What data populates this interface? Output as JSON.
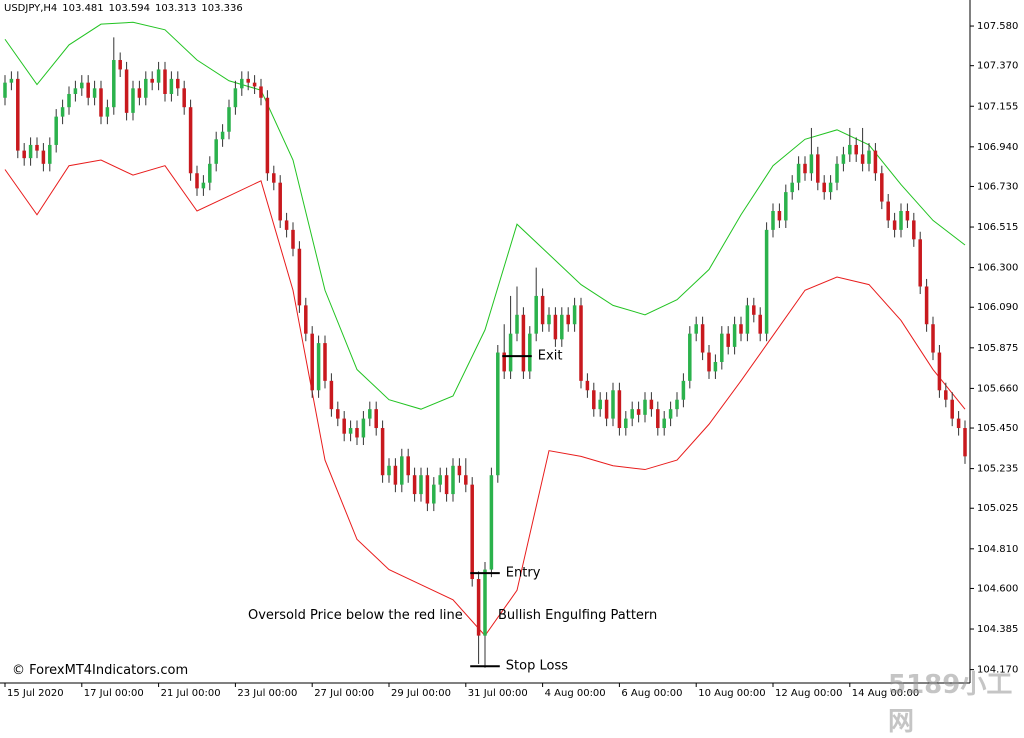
{
  "chart_data": {
    "type": "candlestick",
    "symbol": "USDJPY,H4",
    "header_quotes": [
      103.481,
      103.594,
      103.313,
      103.336
    ],
    "watermark": "© ForexMT4Indicators.com",
    "site_mark": "5189小工网",
    "up_color": "#2bb24c",
    "down_color": "#c8191e",
    "xlim": [
      -0.78,
      150.78
    ],
    "ylim": [
      104.099,
      107.718
    ],
    "yticks": [
      {
        "value": 107.58,
        "label": "107.580"
      },
      {
        "value": 107.37,
        "label": "107.370"
      },
      107.155,
      {
        "value": 106.94,
        "label": "106.940"
      },
      {
        "value": 106.73,
        "label": "106.730"
      },
      106.515,
      {
        "value": 106.3,
        "label": "106.300"
      },
      {
        "value": 106.09,
        "label": "106.090"
      },
      105.875,
      {
        "value": 105.66,
        "label": "105.660"
      },
      {
        "value": 105.45,
        "label": "105.450"
      },
      105.235,
      105.025,
      {
        "value": 104.81,
        "label": "104.810"
      },
      {
        "value": 104.6,
        "label": "104.600"
      },
      104.385,
      {
        "value": 104.17,
        "label": "104.170"
      }
    ],
    "xticks": [
      {
        "value": 0,
        "label": "15 Jul 2020"
      },
      {
        "value": 12,
        "label": "17 Jul 00:00"
      },
      {
        "value": 24,
        "label": "21 Jul 00:00"
      },
      {
        "value": 36,
        "label": "23 Jul 00:00"
      },
      {
        "value": 48,
        "label": "27 Jul 00:00"
      },
      {
        "value": 60,
        "label": "29 Jul 00:00"
      },
      {
        "value": 72,
        "label": "31 Jul 00:00"
      },
      {
        "value": 84,
        "label": "4 Aug 00:00"
      },
      {
        "value": 96,
        "label": "6 Aug 00:00"
      },
      {
        "value": 108,
        "label": "10 Aug 00:00"
      },
      {
        "value": 120,
        "label": "12 Aug 00:00"
      },
      {
        "value": 132,
        "label": "14 Aug 00:00"
      }
    ],
    "open": [
      107.2,
      107.28,
      107.3,
      106.92,
      106.88,
      106.95,
      106.92,
      106.85,
      106.95,
      107.1,
      107.15,
      107.22,
      107.25,
      107.28,
      107.2,
      107.25,
      107.1,
      107.15,
      107.4,
      107.35,
      107.12,
      107.25,
      107.2,
      107.3,
      107.28,
      107.35,
      107.22,
      107.3,
      107.25,
      107.15,
      106.8,
      106.72,
      106.75,
      106.85,
      106.98,
      107.02,
      107.15,
      107.25,
      107.3,
      107.28,
      107.26,
      107.2,
      106.8,
      106.75,
      106.55,
      106.5,
      106.4,
      106.1,
      105.95,
      105.65,
      105.9,
      105.7,
      105.55,
      105.5,
      105.42,
      105.45,
      105.4,
      105.5,
      105.55,
      105.45,
      105.2,
      105.25,
      105.15,
      105.3,
      105.2,
      105.1,
      105.2,
      105.05,
      105.15,
      105.2,
      105.1,
      105.25,
      105.2,
      105.15,
      104.65,
      104.35,
      104.7,
      105.2,
      105.85,
      105.75,
      105.95,
      106.05,
      105.75,
      105.95,
      106.15,
      106.0,
      106.05,
      105.92,
      106.05,
      106.0,
      106.1,
      105.7,
      105.65,
      105.55,
      105.6,
      105.5,
      105.65,
      105.45,
      105.5,
      105.55,
      105.52,
      105.6,
      105.55,
      105.45,
      105.5,
      105.55,
      105.6,
      105.7,
      105.95,
      106.0,
      105.85,
      105.75,
      105.8,
      105.95,
      105.88,
      106.0,
      105.95,
      106.1,
      106.05,
      105.95,
      106.5,
      106.6,
      106.55,
      106.7,
      106.75,
      106.85,
      106.8,
      106.9,
      106.75,
      106.7,
      106.75,
      106.85,
      106.9,
      106.95,
      106.9,
      106.85,
      106.92,
      106.8,
      106.65,
      106.55,
      106.5,
      106.6,
      106.55,
      106.45,
      106.2,
      106.0,
      105.85,
      105.65,
      105.6,
      105.5,
      105.45
    ],
    "high": [
      107.32,
      107.34,
      107.34,
      106.96,
      106.99,
      106.99,
      106.96,
      106.99,
      107.14,
      107.19,
      107.26,
      107.29,
      107.32,
      107.32,
      107.29,
      107.29,
      107.19,
      107.52,
      107.44,
      107.39,
      107.29,
      107.29,
      107.34,
      107.34,
      107.39,
      107.39,
      107.34,
      107.34,
      107.29,
      107.19,
      106.84,
      106.79,
      106.89,
      107.02,
      107.06,
      107.19,
      107.29,
      107.34,
      107.34,
      107.32,
      107.3,
      107.24,
      106.84,
      106.79,
      106.59,
      106.54,
      106.44,
      106.14,
      105.99,
      105.94,
      105.94,
      105.74,
      105.59,
      105.54,
      105.49,
      105.49,
      105.54,
      105.59,
      105.59,
      105.49,
      105.29,
      105.29,
      105.34,
      105.34,
      105.24,
      105.24,
      105.24,
      105.19,
      105.24,
      105.24,
      105.29,
      105.29,
      105.29,
      105.19,
      104.69,
      104.74,
      105.24,
      105.89,
      106.0,
      106.15,
      106.2,
      106.09,
      105.99,
      106.3,
      106.19,
      106.09,
      106.09,
      106.09,
      106.09,
      106.14,
      106.14,
      105.74,
      105.69,
      105.64,
      105.64,
      105.69,
      105.69,
      105.54,
      105.59,
      105.59,
      105.64,
      105.64,
      105.59,
      105.54,
      105.59,
      105.64,
      105.74,
      105.99,
      106.04,
      106.04,
      105.89,
      105.84,
      105.99,
      105.99,
      106.04,
      106.04,
      106.14,
      106.14,
      106.09,
      106.54,
      106.64,
      106.64,
      106.74,
      106.79,
      106.89,
      106.89,
      107.04,
      106.94,
      106.79,
      106.79,
      106.89,
      106.94,
      107.04,
      106.99,
      107.04,
      106.96,
      106.96,
      106.84,
      106.69,
      106.59,
      106.64,
      106.64,
      106.59,
      106.49,
      106.24,
      106.04,
      105.89,
      105.69,
      105.64,
      105.54,
      105.49
    ],
    "low": [
      107.16,
      107.24,
      106.88,
      106.84,
      106.84,
      106.88,
      106.81,
      106.81,
      106.91,
      107.06,
      107.11,
      107.18,
      107.21,
      107.16,
      107.16,
      107.06,
      107.06,
      107.11,
      107.31,
      107.08,
      107.08,
      107.16,
      107.16,
      107.24,
      107.24,
      107.18,
      107.18,
      107.21,
      107.11,
      106.76,
      106.68,
      106.68,
      106.71,
      106.81,
      106.94,
      106.98,
      107.11,
      107.21,
      107.24,
      107.22,
      107.16,
      106.76,
      106.71,
      106.51,
      106.46,
      106.36,
      106.06,
      105.91,
      105.61,
      105.61,
      105.66,
      105.51,
      105.46,
      105.38,
      105.38,
      105.36,
      105.36,
      105.46,
      105.41,
      105.16,
      105.16,
      105.11,
      105.11,
      105.16,
      105.06,
      105.06,
      105.01,
      105.01,
      105.11,
      105.06,
      105.06,
      105.16,
      105.11,
      104.61,
      104.2,
      104.18,
      104.66,
      105.16,
      105.71,
      105.71,
      105.91,
      105.71,
      105.71,
      105.91,
      105.96,
      105.96,
      105.88,
      105.88,
      105.96,
      105.96,
      105.66,
      105.61,
      105.51,
      105.51,
      105.46,
      105.46,
      105.41,
      105.41,
      105.46,
      105.48,
      105.48,
      105.51,
      105.41,
      105.41,
      105.46,
      105.51,
      105.56,
      105.66,
      105.91,
      105.81,
      105.71,
      105.71,
      105.76,
      105.84,
      105.84,
      105.91,
      105.91,
      106.01,
      105.91,
      105.91,
      106.46,
      106.51,
      106.51,
      106.66,
      106.71,
      106.76,
      106.76,
      106.71,
      106.66,
      106.66,
      106.71,
      106.81,
      106.86,
      106.86,
      106.81,
      106.81,
      106.76,
      106.61,
      106.51,
      106.46,
      106.46,
      106.51,
      106.41,
      106.16,
      105.96,
      105.81,
      105.61,
      105.56,
      105.46,
      105.41,
      105.26
    ],
    "close": [
      107.28,
      107.3,
      106.92,
      106.88,
      106.95,
      106.92,
      106.85,
      106.95,
      107.1,
      107.15,
      107.22,
      107.25,
      107.28,
      107.2,
      107.25,
      107.1,
      107.15,
      107.4,
      107.35,
      107.12,
      107.25,
      107.2,
      107.3,
      107.28,
      107.35,
      107.22,
      107.3,
      107.25,
      107.15,
      106.8,
      106.72,
      106.75,
      106.85,
      106.98,
      107.02,
      107.15,
      107.25,
      107.3,
      107.28,
      107.26,
      107.2,
      106.8,
      106.75,
      106.55,
      106.5,
      106.4,
      106.1,
      105.95,
      105.65,
      105.9,
      105.7,
      105.55,
      105.5,
      105.42,
      105.45,
      105.4,
      105.5,
      105.55,
      105.45,
      105.2,
      105.25,
      105.15,
      105.3,
      105.2,
      105.1,
      105.2,
      105.05,
      105.15,
      105.2,
      105.1,
      105.25,
      105.2,
      105.15,
      104.65,
      104.35,
      104.7,
      105.2,
      105.85,
      105.75,
      105.95,
      106.05,
      105.75,
      105.95,
      106.15,
      106.0,
      106.05,
      105.92,
      106.05,
      106.0,
      106.1,
      105.7,
      105.65,
      105.55,
      105.6,
      105.5,
      105.65,
      105.45,
      105.5,
      105.55,
      105.52,
      105.6,
      105.55,
      105.45,
      105.5,
      105.55,
      105.6,
      105.7,
      105.95,
      106.0,
      105.85,
      105.75,
      105.8,
      105.95,
      105.88,
      106.0,
      105.95,
      106.1,
      106.05,
      105.95,
      106.5,
      106.6,
      106.55,
      106.7,
      106.75,
      106.85,
      106.8,
      106.9,
      106.75,
      106.7,
      106.75,
      106.85,
      106.9,
      106.95,
      106.9,
      106.85,
      106.92,
      106.8,
      106.65,
      106.55,
      106.5,
      106.6,
      106.55,
      106.45,
      106.2,
      106.0,
      105.85,
      105.65,
      105.6,
      105.5,
      105.45,
      105.3
    ],
    "bands": {
      "x": [
        0,
        5,
        10,
        15,
        20,
        25,
        30,
        35,
        40,
        45,
        50,
        55,
        60,
        65,
        70,
        75,
        80,
        85,
        90,
        95,
        100,
        105,
        110,
        115,
        120,
        125,
        130,
        135,
        140,
        145,
        150
      ],
      "series": [
        {
          "color": "#22c322",
          "values": [
            107.51,
            107.27,
            107.48,
            107.59,
            107.6,
            107.56,
            107.4,
            107.29,
            107.24,
            106.87,
            106.18,
            105.76,
            105.6,
            105.55,
            105.62,
            105.97,
            106.53,
            106.37,
            106.21,
            106.1,
            106.05,
            106.13,
            106.29,
            106.58,
            106.84,
            106.98,
            107.03,
            106.95,
            106.74,
            106.55,
            106.42
          ]
        },
        {
          "color": "#e81c1c",
          "values": [
            106.82,
            106.58,
            106.84,
            106.87,
            106.79,
            106.84,
            106.6,
            106.68,
            106.76,
            106.18,
            105.28,
            104.86,
            104.7,
            104.62,
            104.54,
            104.35,
            104.59,
            105.33,
            105.3,
            105.25,
            105.23,
            105.28,
            105.47,
            105.7,
            105.94,
            106.18,
            106.25,
            106.21,
            106.02,
            105.76,
            105.55
          ]
        }
      ]
    },
    "levels": [
      {
        "label": "Exit",
        "value": 105.831,
        "from": 78,
        "to": 82
      },
      {
        "label": "Entry",
        "value": 104.681,
        "from": 73,
        "to": 77
      },
      {
        "label": "Stop Loss",
        "value": 104.188,
        "from": 73,
        "to": 77
      }
    ],
    "annotations": [
      "Oversold Price below the red line",
      "Bullish Engulfing Pattern"
    ]
  }
}
